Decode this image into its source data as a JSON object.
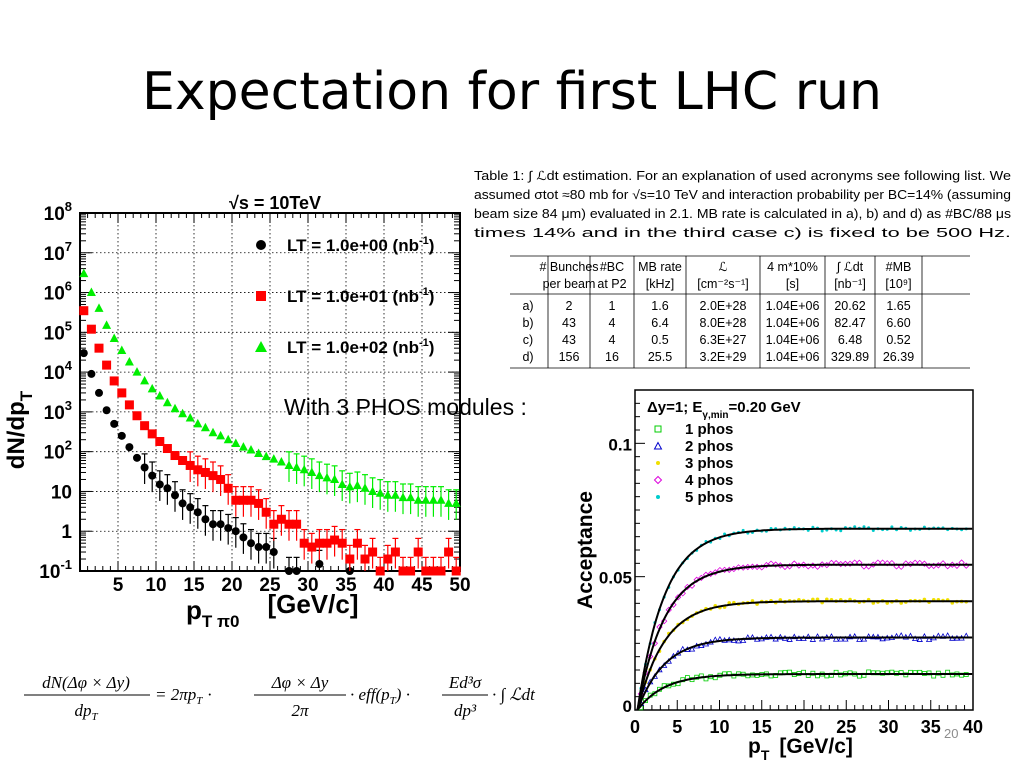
{
  "slide": {
    "title": "Expectation for first LHC run",
    "phos_note": "With 3 PHOS modules :",
    "page_number": "20"
  },
  "table": {
    "caption_lines": [
      "Table 1: ∫ ℒdt estimation. For an explanation of used acronyms see following list. We",
      "assumed σtot ≈80 mb for √s=10 TeV and interaction probability per BC=14% (assuming",
      "beam size 84 μm) evaluated in 2.1. MB rate is calculated in a), b) and d) as #BC/88 μs",
      "times 14% and in the third case c) is fixed to be 500 Hz."
    ],
    "headers": [
      [
        "",
        "# Bunches",
        "#BC",
        "MB rate",
        "ℒ",
        "4 m*10%",
        "∫ ℒdt",
        "#MB"
      ],
      [
        "",
        "per beam",
        "at P2",
        "[kHz]",
        "[cm⁻²s⁻¹]",
        "[s]",
        "[nb⁻¹]",
        "[10⁹]"
      ]
    ],
    "rows": [
      [
        "a)",
        "2",
        "1",
        "1.6",
        "2.0E+28",
        "1.04E+06",
        "20.62",
        "1.65"
      ],
      [
        "b)",
        "43",
        "4",
        "6.4",
        "8.0E+28",
        "1.04E+06",
        "82.47",
        "6.60"
      ],
      [
        "c)",
        "43",
        "4",
        "0.5",
        "6.3E+27",
        "1.04E+06",
        "6.48",
        "0.52"
      ],
      [
        "d)",
        "156",
        "16",
        "25.5",
        "3.2E+29",
        "1.04E+06",
        "329.89",
        "26.39"
      ]
    ]
  },
  "formula": {
    "lhs_num": "dN(Δφ × Δy)",
    "lhs_den": "dp",
    "lhs_den_sub": "T",
    "factor1": "= 2πp",
    "factor1_sub": "T",
    "frac2_num": "Δφ × Δy",
    "frac2_den": "2π",
    "factor3": "· eff(p",
    "factor3_sub": "T",
    "factor3_end": ") ·",
    "frac4_num": "Ed³σ",
    "frac4_den": "dp³",
    "tail": "· ∫ ℒdt",
    "dot": "·"
  },
  "chart_data": [
    {
      "type": "scatter",
      "title": "√s = 10TeV",
      "xlabel": "p",
      "xlabel_sub": "T π0",
      "xlabel_unit": "[GeV/c]",
      "ylabel": "dN/dp",
      "ylabel_sub": "T",
      "xlim": [
        0,
        50
      ],
      "ylim": [
        0.1,
        100000000
      ],
      "log_y": true,
      "grid": true,
      "x_ticks": [
        "5",
        "10",
        "15",
        "20",
        "25",
        "30",
        "35",
        "40",
        "45",
        "50"
      ],
      "y_ticks": [
        {
          "base": "10",
          "exp": "-1"
        },
        {
          "base": "1",
          "exp": ""
        },
        {
          "base": "10",
          "exp": ""
        },
        {
          "base": "10",
          "exp": "2"
        },
        {
          "base": "10",
          "exp": "3"
        },
        {
          "base": "10",
          "exp": "4"
        },
        {
          "base": "10",
          "exp": "5"
        },
        {
          "base": "10",
          "exp": "6"
        },
        {
          "base": "10",
          "exp": "7"
        },
        {
          "base": "10",
          "exp": "8"
        }
      ],
      "legend_position": "top-right",
      "series": [
        {
          "name": "LT = 1.0e+00 (nb",
          "name_sup": "-1",
          "name_end": ")",
          "color": "#000000",
          "marker": "circle",
          "x": [
            0.5,
            1.5,
            2.5,
            3.5,
            4.5,
            5.5,
            6.5,
            7.5,
            8.5,
            9.5,
            10.5,
            11.5,
            12.5,
            13.5,
            14.5,
            15.5,
            16.5,
            17.5,
            18.5,
            19.5,
            20.5,
            21.5,
            22.5,
            23.5,
            24.5,
            25.5,
            27.5,
            28.5,
            31.5,
            35.5
          ],
          "y": [
            30000,
            9000,
            3000,
            1100,
            500,
            250,
            130,
            70,
            40,
            25,
            15,
            12,
            8,
            5,
            4,
            3,
            2,
            1.5,
            1.5,
            1.2,
            1,
            0.7,
            0.5,
            0.4,
            0.4,
            0.3,
            0.1,
            0.1,
            0.15,
            0.1
          ]
        },
        {
          "name": "LT = 1.0e+01 (nb",
          "name_sup": "-1",
          "name_end": ")",
          "color": "#ff0000",
          "marker": "square",
          "x": [
            0.5,
            1.5,
            2.5,
            3.5,
            4.5,
            5.5,
            6.5,
            7.5,
            8.5,
            9.5,
            10.5,
            11.5,
            12.5,
            13.5,
            14.5,
            15.5,
            16.5,
            17.5,
            18.5,
            19.5,
            20.5,
            21.5,
            22.5,
            23.5,
            24.5,
            25.5,
            26.5,
            27.5,
            28.5,
            29.5,
            30.5,
            31.5,
            32.5,
            33.5,
            34.5,
            35.5,
            36.5,
            37.5,
            38.5,
            39.5,
            40.5,
            41.5,
            42.5,
            43.5,
            44.5,
            45.5,
            46.5,
            47.5,
            48.5,
            49.5
          ],
          "y": [
            350000,
            120000,
            40000,
            15000,
            6000,
            3000,
            1500,
            800,
            450,
            280,
            180,
            120,
            80,
            60,
            45,
            35,
            30,
            25,
            20,
            12,
            6,
            6,
            6,
            5,
            3,
            1.5,
            2,
            1.5,
            1.5,
            0.5,
            0.4,
            0.5,
            0.5,
            0.6,
            0.5,
            0.2,
            0.5,
            0.2,
            0.3,
            0.1,
            0.2,
            0.3,
            0.1,
            0.1,
            0.3,
            0.1,
            0.1,
            0.1,
            0.3,
            0.1
          ]
        },
        {
          "name": "LT = 1.0e+02 (nb",
          "name_sup": "-1",
          "name_end": ")",
          "color": "#00ee00",
          "marker": "triangle",
          "x": [
            0.5,
            1.5,
            2.5,
            3.5,
            4.5,
            5.5,
            6.5,
            7.5,
            8.5,
            9.5,
            10.5,
            11.5,
            12.5,
            13.5,
            14.5,
            15.5,
            16.5,
            17.5,
            18.5,
            19.5,
            20.5,
            21.5,
            22.5,
            23.5,
            24.5,
            25.5,
            26.5,
            27.5,
            28.5,
            29.5,
            30.5,
            31.5,
            32.5,
            33.5,
            34.5,
            35.5,
            36.5,
            37.5,
            38.5,
            39.5,
            40.5,
            41.5,
            42.5,
            43.5,
            44.5,
            45.5,
            46.5,
            47.5,
            48.5,
            49.5
          ],
          "y": [
            3000000,
            1000000,
            400000,
            150000,
            70000,
            35000,
            18000,
            10000,
            6000,
            3800,
            2500,
            1700,
            1200,
            900,
            700,
            500,
            400,
            300,
            250,
            200,
            160,
            130,
            110,
            90,
            75,
            65,
            55,
            45,
            40,
            35,
            30,
            25,
            22,
            20,
            15,
            13,
            14,
            12,
            10,
            9,
            8,
            8,
            7,
            7,
            6,
            6,
            6,
            6,
            5,
            5
          ]
        }
      ]
    },
    {
      "type": "line",
      "title": "Δy=1; E",
      "title_sub": "γ,min",
      "title_end": "=0.20 GeV",
      "xlabel": "p",
      "xlabel_sub": "T",
      "xlabel_unit": "[GeV/c]",
      "ylabel": "Acceptance",
      "xlim": [
        0,
        40
      ],
      "ylim": [
        0,
        0.12
      ],
      "x_ticks": [
        "0",
        "5",
        "10",
        "15",
        "20",
        "25",
        "30",
        "35",
        "40"
      ],
      "y_ticks": [
        {
          "label": "0",
          "value": 0
        },
        {
          "label": "0.05",
          "value": 0.05
        },
        {
          "label": "0.1",
          "value": 0.1
        }
      ],
      "legend_position": "top-left",
      "series": [
        {
          "name": "1 phos",
          "color": "#00cc00",
          "marker": "open-square",
          "plateau": 0.0135
        },
        {
          "name": "2 phos",
          "color": "#0000cc",
          "marker": "open-triangle",
          "plateau": 0.0272
        },
        {
          "name": "3 phos",
          "color": "#f0e000",
          "marker": "star",
          "plateau": 0.0408
        },
        {
          "name": "4 phos",
          "color": "#dd00dd",
          "marker": "open-diamond",
          "plateau": 0.0545
        },
        {
          "name": "5 phos",
          "color": "#00cccc",
          "marker": "dot",
          "plateau": 0.068
        }
      ]
    }
  ]
}
